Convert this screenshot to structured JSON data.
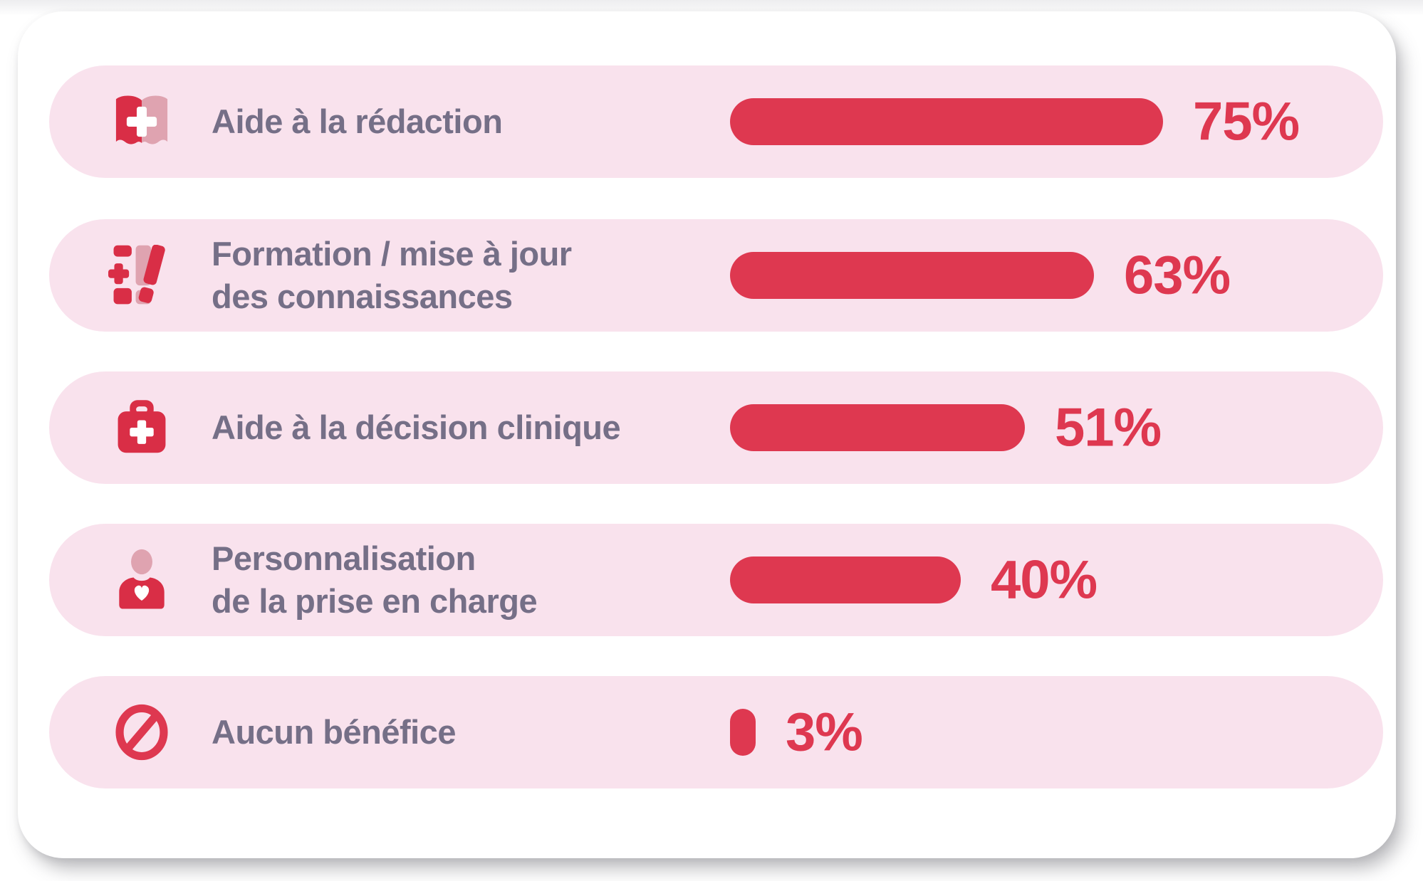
{
  "chart_data": {
    "type": "bar",
    "orientation": "horizontal",
    "unit": "%",
    "categories": [
      "Aide à la rédaction",
      "Formation / mise à jour des connaissances",
      "Aide à la décision clinique",
      "Personnalisation de la prise en charge",
      "Aucun bénéfice"
    ],
    "values": [
      75,
      63,
      51,
      40,
      3
    ],
    "data_labels": [
      "75%",
      "63%",
      "51%",
      "40%",
      "3%"
    ],
    "xlim": [
      0,
      100
    ],
    "grid": false,
    "legend": false
  },
  "rows": [
    {
      "icon": "medical-book-icon",
      "label_lines": [
        "Aide à la rédaction"
      ],
      "value": 75,
      "value_label": "75%"
    },
    {
      "icon": "books-icon",
      "label_lines": [
        "Formation / mise à jour",
        "des connaissances"
      ],
      "value": 63,
      "value_label": "63%"
    },
    {
      "icon": "medical-bag-icon",
      "label_lines": [
        "Aide à la décision clinique"
      ],
      "value": 51,
      "value_label": "51%"
    },
    {
      "icon": "person-heart-icon",
      "label_lines": [
        "Personnalisation",
        "de la prise en charge"
      ],
      "value": 40,
      "value_label": "40%"
    },
    {
      "icon": "no-benefit-icon",
      "label_lines": [
        "Aucun bénéfice"
      ],
      "value": 3,
      "value_label": "3%"
    }
  ],
  "colors": {
    "bar_red": "#de3850",
    "icon_red": "#d92e46",
    "accent_pink": "#dfa3b0",
    "row_bg": "#f9e2ed",
    "card_bg": "#ffffff",
    "label_text": "#756f87"
  }
}
